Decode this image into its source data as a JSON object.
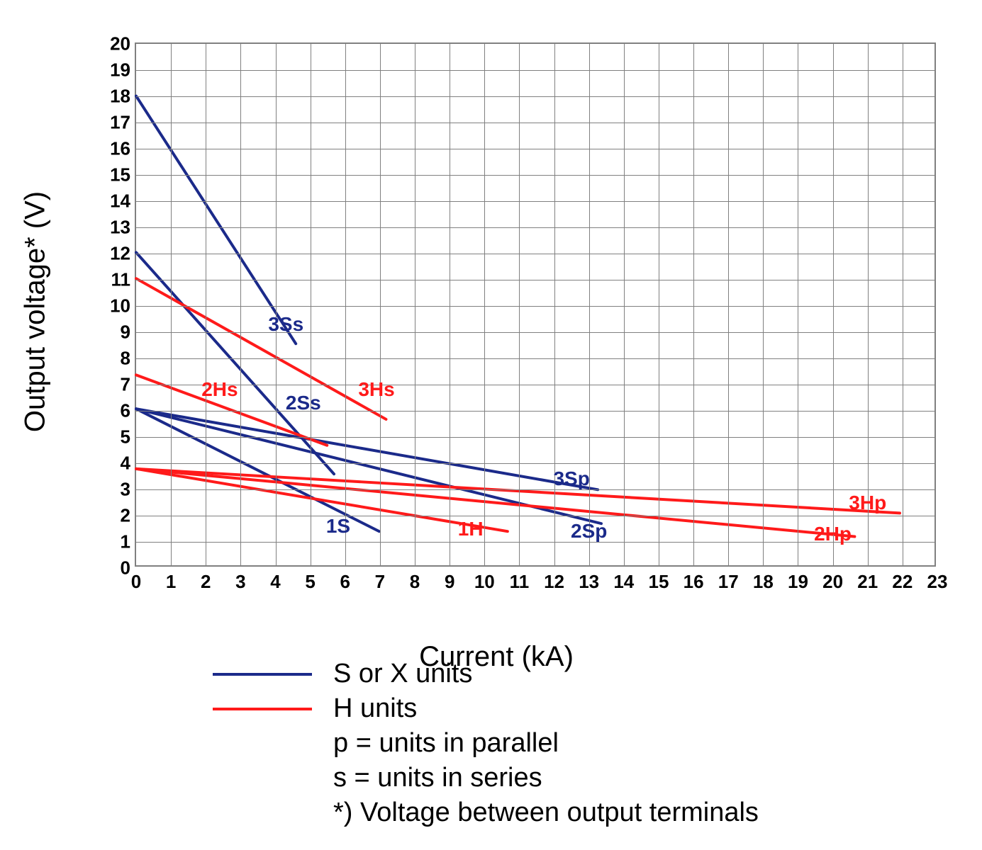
{
  "chart": {
    "type": "line",
    "xlabel": "Current (kA)",
    "ylabel": "Output voltage* (V)",
    "xlim": [
      0,
      23
    ],
    "ylim": [
      0,
      20
    ],
    "xtick_step": 1,
    "ytick_step": 1,
    "background_color": "#ffffff",
    "grid_color": "#808080",
    "axis_color": "#808080",
    "tick_fontsize": 26,
    "tick_fontweight": "bold",
    "label_fontsize": 40,
    "line_width": 4,
    "series_label_fontsize": 28,
    "colors": {
      "s_units": "#1b2a8a",
      "h_units": "#ff1a1a"
    },
    "series": [
      {
        "name": "3Ss",
        "color_key": "s_units",
        "points": [
          [
            0,
            18
          ],
          [
            4.6,
            8.5
          ]
        ],
        "label_xy": [
          4.3,
          9.3
        ]
      },
      {
        "name": "2Ss",
        "color_key": "s_units",
        "points": [
          [
            0,
            12
          ],
          [
            5.7,
            3.5
          ]
        ],
        "label_xy": [
          4.8,
          6.3
        ]
      },
      {
        "name": "3Sp",
        "color_key": "s_units",
        "points": [
          [
            0,
            6
          ],
          [
            13.3,
            2.9
          ]
        ],
        "label_xy": [
          12.5,
          3.4
        ]
      },
      {
        "name": "2Sp",
        "color_key": "s_units",
        "points": [
          [
            0,
            6
          ],
          [
            13.4,
            1.6
          ]
        ],
        "label_xy": [
          13.0,
          1.4
        ]
      },
      {
        "name": "1S",
        "color_key": "s_units",
        "points": [
          [
            0,
            6
          ],
          [
            7.0,
            1.3
          ]
        ],
        "label_xy": [
          5.8,
          1.6
        ]
      },
      {
        "name": "3Hs",
        "color_key": "h_units",
        "points": [
          [
            0,
            11
          ],
          [
            7.2,
            5.6
          ]
        ],
        "label_xy": [
          6.9,
          6.8
        ]
      },
      {
        "name": "2Hs",
        "color_key": "h_units",
        "points": [
          [
            0,
            7.3
          ],
          [
            5.5,
            4.6
          ]
        ],
        "label_xy": [
          2.4,
          6.8
        ]
      },
      {
        "name": "3Hp",
        "color_key": "h_units",
        "points": [
          [
            0,
            3.7
          ],
          [
            22.0,
            2.0
          ]
        ],
        "label_xy": [
          21.0,
          2.5
        ]
      },
      {
        "name": "2Hp",
        "color_key": "h_units",
        "points": [
          [
            0,
            3.7
          ],
          [
            20.7,
            1.1
          ]
        ],
        "label_xy": [
          20.0,
          1.3
        ]
      },
      {
        "name": "1H",
        "color_key": "h_units",
        "points": [
          [
            0,
            3.7
          ],
          [
            10.7,
            1.3
          ]
        ],
        "label_xy": [
          9.6,
          1.5
        ]
      }
    ],
    "legend": {
      "items": [
        {
          "swatch_color_key": "s_units",
          "label": "S or X units"
        },
        {
          "swatch_color_key": "h_units",
          "label": "H units"
        }
      ],
      "notes": [
        "p = units in parallel",
        "s = units in series",
        "*) Voltage between output terminals"
      ]
    }
  }
}
